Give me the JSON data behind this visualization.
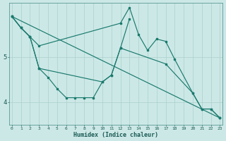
{
  "xlabel": "Humidex (Indice chaleur)",
  "bg_color": "#cce8e6",
  "line_color": "#1a7a6e",
  "grid_color": "#afd4d0",
  "ylim": [
    3.5,
    6.2
  ],
  "yticks": [
    4,
    5
  ],
  "xlim": [
    -0.3,
    23.3
  ],
  "line1_x": [
    0,
    1,
    2,
    3,
    12,
    13,
    14,
    15,
    16,
    17,
    18,
    20,
    21,
    22,
    23
  ],
  "line1_y": [
    5.9,
    5.65,
    5.45,
    5.25,
    5.75,
    6.1,
    5.5,
    5.15,
    5.4,
    5.35,
    4.95,
    4.2,
    3.85,
    3.85,
    3.65
  ],
  "line2_x": [
    0,
    1,
    2,
    3,
    4,
    5,
    6,
    7,
    8,
    9,
    10,
    11,
    12,
    13
  ],
  "line2_y": [
    5.9,
    5.65,
    5.45,
    4.75,
    4.55,
    4.3,
    4.1,
    4.1,
    4.1,
    4.1,
    4.45,
    4.6,
    5.2,
    5.85
  ],
  "line3_x": [
    0,
    1,
    2,
    3,
    10,
    11,
    12,
    17,
    20,
    21,
    22,
    23
  ],
  "line3_y": [
    5.9,
    5.65,
    5.45,
    4.75,
    4.45,
    4.6,
    5.2,
    4.85,
    4.2,
    3.85,
    3.85,
    3.65
  ],
  "line4_x": [
    0,
    23
  ],
  "line4_y": [
    5.9,
    3.65
  ]
}
